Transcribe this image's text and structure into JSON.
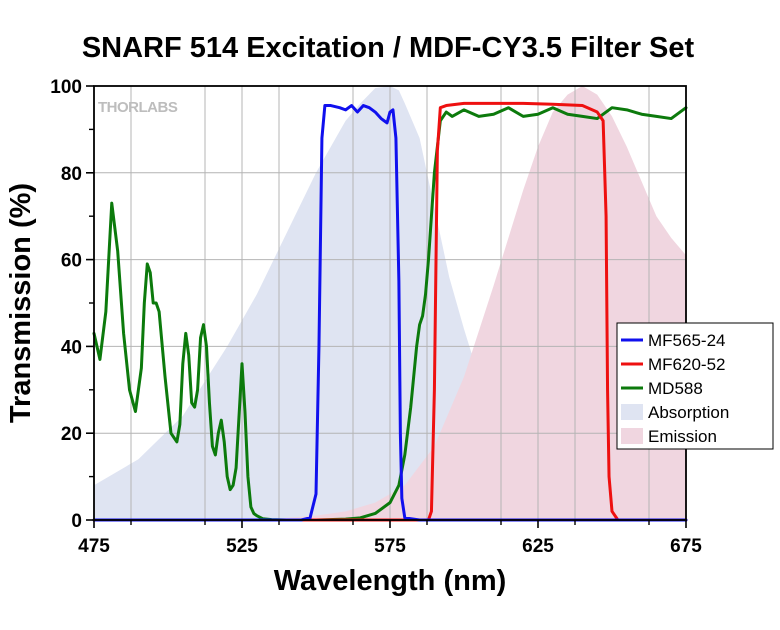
{
  "chart_data": {
    "type": "line",
    "title": "SNARF 514 Excitation / MDF-CY3.5 Filter Set",
    "xlabel": "Wavelength (nm)",
    "ylabel": "Transmission (%)",
    "xlim": [
      475,
      675
    ],
    "ylim": [
      0,
      100
    ],
    "x_ticks": [
      475,
      525,
      575,
      625,
      675
    ],
    "x_tick_labels": [
      "475",
      "525",
      "575",
      "625",
      "675"
    ],
    "x_minor_step": 12.5,
    "y_ticks": [
      0,
      20,
      40,
      60,
      80,
      100
    ],
    "y_tick_labels": [
      "0",
      "20",
      "40",
      "60",
      "80",
      "100"
    ],
    "grid": true,
    "legend_position": "right",
    "watermark": "THORLABS",
    "series": [
      {
        "name": "MF565-24",
        "kind": "line",
        "color": "#1010ee",
        "x": [
          475,
          500,
          530,
          545,
          548,
          550,
          551,
          552,
          553,
          555,
          558,
          560,
          562,
          564,
          566,
          568,
          570,
          572,
          574,
          575,
          576,
          577,
          578,
          578.5,
          579,
          580,
          585,
          675
        ],
        "y": [
          0,
          0,
          0,
          0,
          0.5,
          6,
          40,
          88,
          95.5,
          95.5,
          95,
          94.5,
          95.5,
          94,
          95.5,
          95,
          94,
          92.5,
          91.5,
          94,
          94.5,
          88,
          55,
          20,
          5,
          0.5,
          0,
          0
        ]
      },
      {
        "name": "MF620-52",
        "kind": "line",
        "color": "#ee1010",
        "x": [
          475,
          580,
          588,
          589,
          590,
          591,
          592,
          594,
          600,
          610,
          620,
          630,
          640,
          645,
          646,
          647,
          648,
          648.5,
          649,
          650,
          652,
          675
        ],
        "y": [
          0,
          0,
          0,
          2,
          30,
          85,
          95,
          95.5,
          96,
          96,
          96,
          95.8,
          95.5,
          94,
          93,
          92,
          70,
          30,
          10,
          2,
          0,
          0
        ]
      },
      {
        "name": "MD588",
        "kind": "line",
        "color": "#0c7a0c",
        "x": [
          475,
          477,
          479,
          481,
          483,
          485,
          487,
          489,
          491,
          492,
          493,
          494,
          495,
          496,
          497,
          499,
          501,
          503,
          504,
          505,
          506,
          507,
          508,
          509,
          510,
          511,
          512,
          513,
          514,
          515,
          516,
          517,
          518,
          519,
          520,
          521,
          522,
          523,
          524,
          525,
          526,
          527,
          528,
          529,
          530,
          532,
          535,
          540,
          550,
          560,
          565,
          570,
          575,
          578,
          580,
          582,
          584,
          585,
          586,
          587,
          588,
          590,
          592,
          594,
          596,
          600,
          605,
          610,
          615,
          620,
          625,
          630,
          635,
          640,
          645,
          650,
          655,
          660,
          665,
          670,
          675
        ],
        "y": [
          43,
          37,
          48,
          73,
          62,
          43,
          30,
          25,
          35,
          50,
          59,
          57,
          50,
          50,
          48,
          33,
          20,
          18,
          22,
          36,
          43,
          38,
          27,
          26,
          30,
          42,
          45,
          40,
          27,
          17,
          15,
          20,
          23,
          18,
          10,
          7,
          8,
          12,
          24,
          36,
          25,
          10,
          3,
          1.5,
          1,
          0.3,
          0.1,
          0,
          0,
          0.2,
          0.5,
          1.5,
          4,
          8,
          15,
          26,
          40,
          45,
          47,
          52,
          60,
          80,
          92,
          94,
          93,
          94.5,
          93,
          93.5,
          95,
          93,
          93.5,
          95,
          93.5,
          93,
          92.5,
          95,
          94.5,
          93.5,
          93,
          92.5,
          95
        ]
      },
      {
        "name": "Absorption",
        "kind": "area",
        "color": "#dfe4f2",
        "x": [
          475,
          490,
          505,
          520,
          530,
          540,
          550,
          560,
          565,
          570,
          575,
          578,
          580,
          585,
          590,
          595,
          600,
          605,
          610,
          620,
          630,
          640,
          650,
          660,
          675
        ],
        "y": [
          8,
          14,
          24,
          40,
          52,
          66,
          80,
          92,
          96,
          99.5,
          100,
          99,
          96,
          88,
          72,
          56,
          44,
          33,
          24,
          13,
          6.5,
          3.5,
          2,
          1,
          0.5
        ]
      },
      {
        "name": "Emission",
        "kind": "area",
        "color": "#f0d6e0",
        "x": [
          475,
          530,
          550,
          560,
          570,
          580,
          590,
          600,
          610,
          620,
          625,
          630,
          635,
          640,
          645,
          650,
          655,
          660,
          665,
          670,
          675
        ],
        "y": [
          0,
          0,
          1,
          2,
          4,
          8,
          17,
          33,
          54,
          76,
          86,
          94,
          98,
          100,
          98,
          93,
          86,
          78,
          70,
          65,
          61
        ]
      }
    ]
  }
}
